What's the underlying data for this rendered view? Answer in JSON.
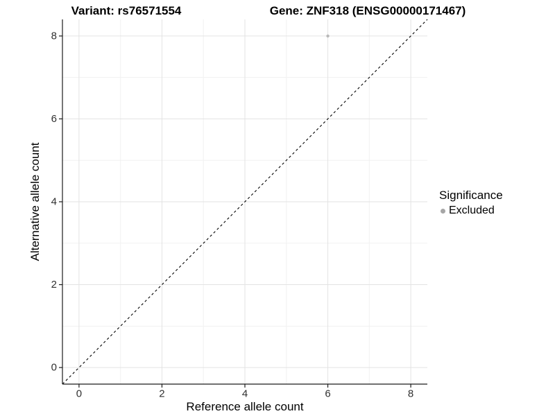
{
  "chart_data": {
    "type": "scatter",
    "titles": {
      "left": "Variant: rs76571554",
      "right": "Gene: ZNF318 (ENSG00000171467)"
    },
    "xlabel": "Reference allele count",
    "ylabel": "Alternative allele count",
    "xlim": [
      -0.4,
      8.4
    ],
    "ylim": [
      -0.4,
      8.4
    ],
    "x_ticks": [
      0,
      2,
      4,
      6,
      8
    ],
    "y_ticks": [
      0,
      2,
      4,
      6,
      8
    ],
    "x_minor_ticks": [
      1,
      3,
      5,
      7
    ],
    "y_minor_ticks": [
      1,
      3,
      5,
      7
    ],
    "grid": "major and minor, light gray, white panel",
    "series": [
      {
        "name": "Excluded",
        "color": "#b9b9b9",
        "point_radius": 2.2,
        "points": [
          {
            "x": 6,
            "y": 8
          }
        ]
      }
    ],
    "reference_line": {
      "type": "identity (y = x)",
      "style": "dashed",
      "color": "#000000"
    },
    "legend": {
      "title": "Significance",
      "position": "right",
      "entries": [
        {
          "label": "Excluded",
          "color": "#a6a6a6"
        }
      ]
    }
  },
  "colors": {
    "background": "#ffffff",
    "grid_major": "#e3e3e3",
    "grid_minor": "#f1f1f1",
    "axis_line": "#1a1a1a",
    "tick_mark": "#1a1a1a",
    "tick_label": "#303030"
  }
}
